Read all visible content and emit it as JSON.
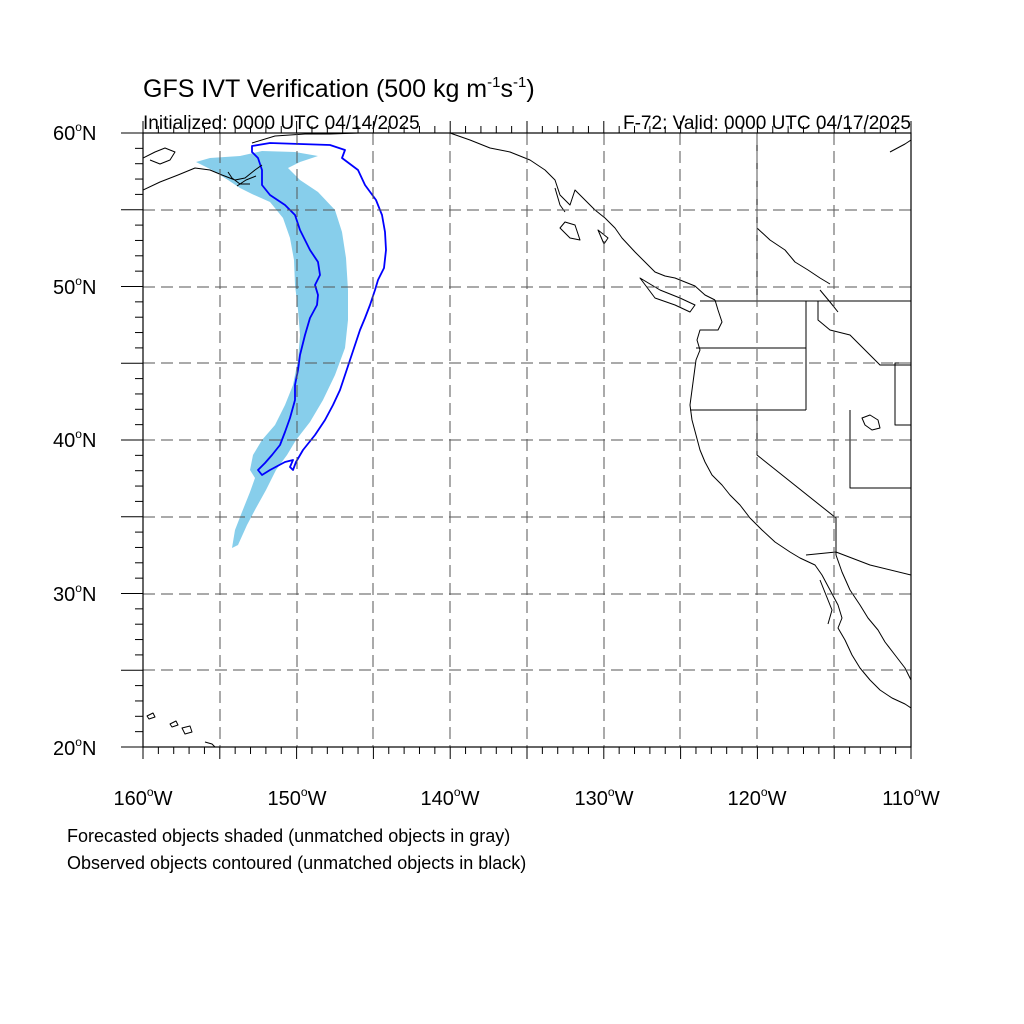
{
  "title": {
    "main": "GFS IVT Verification (500 kg m",
    "sup1": "-1",
    "mid": "s",
    "sup2": "-1",
    "end": ")"
  },
  "init_text": "Initialized: 0000 UTC 04/14/2025",
  "valid_text": "F-72: Valid: 0000 UTC 04/17/2025",
  "lat_labels": [
    "60",
    "50",
    "40",
    "30",
    "20"
  ],
  "lat_suffix": "N",
  "lon_labels": [
    "160",
    "150",
    "140",
    "130",
    "120",
    "110"
  ],
  "lon_suffix": "W",
  "degree_symbol": "o",
  "footer": {
    "line1": "Forecasted objects shaded (unmatched objects in gray)",
    "line2": "Observed objects contoured (unmatched objects in black)"
  },
  "colors": {
    "forecast_fill": "#87ceeb",
    "observed_contour": "#0000ff",
    "coastline": "#000000",
    "grid": "#555555"
  }
}
